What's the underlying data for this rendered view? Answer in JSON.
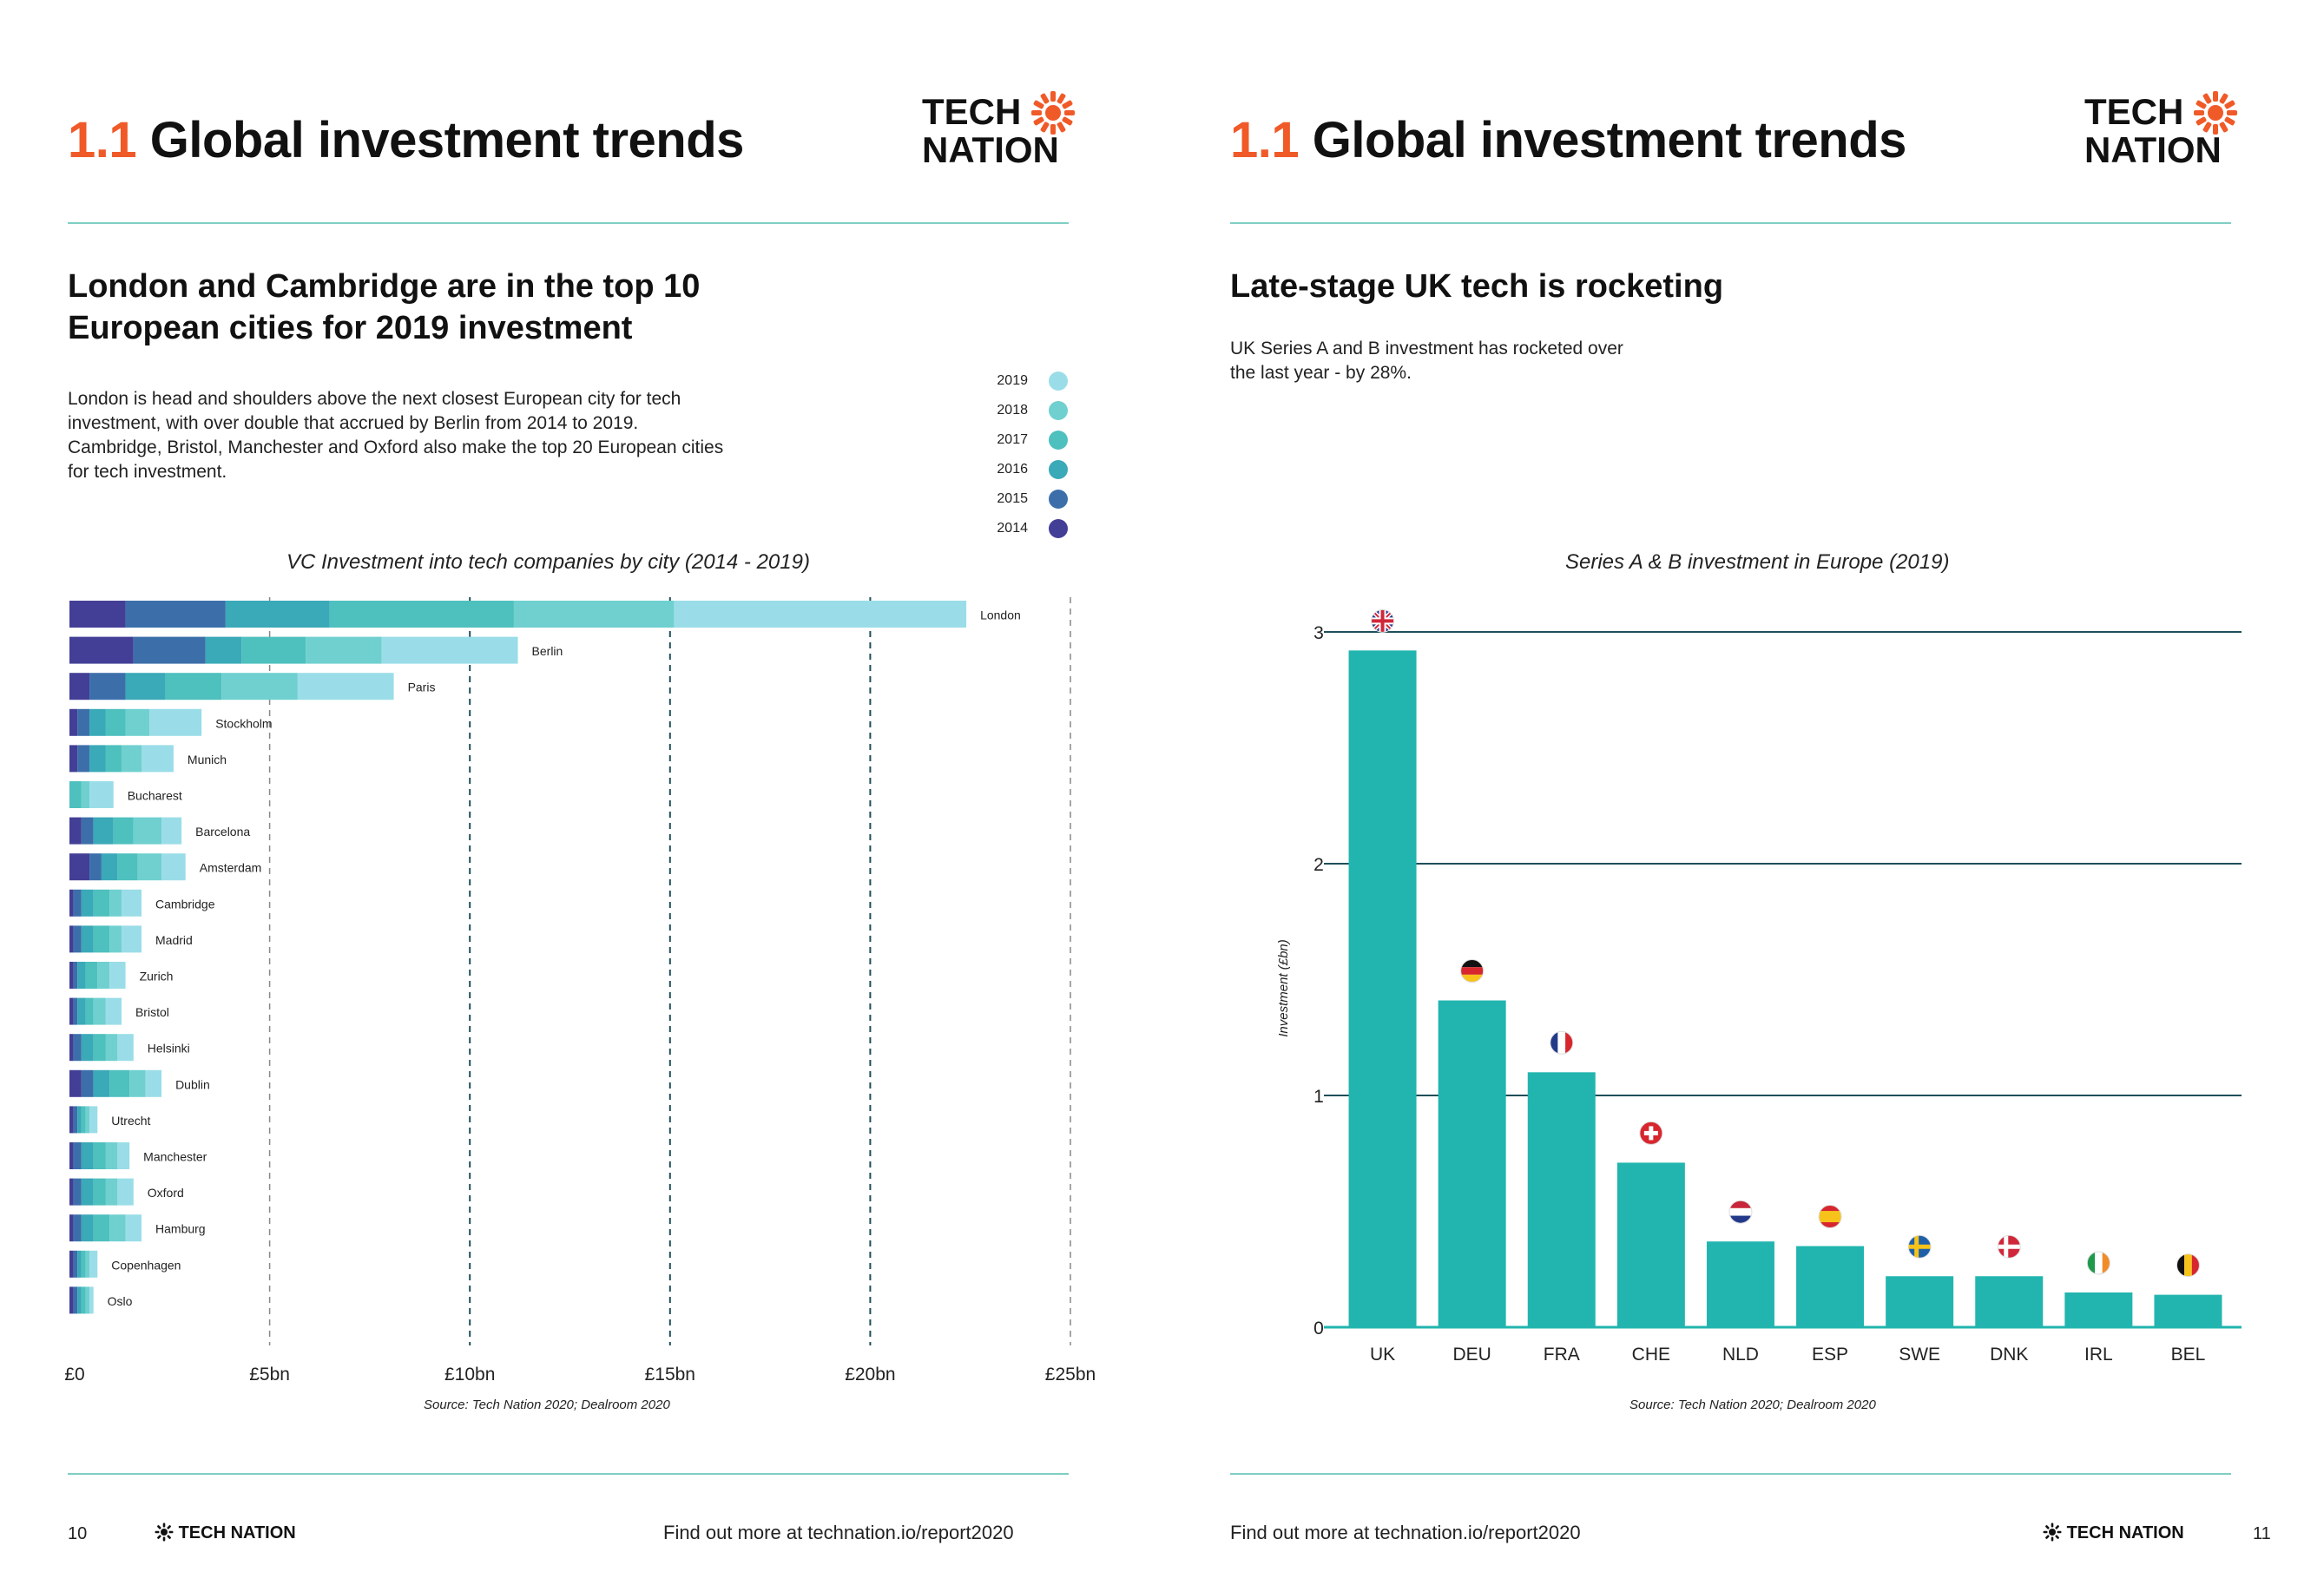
{
  "left_page": {
    "title_number": "1.1",
    "title_text": "Global investment trends",
    "logo_line1": "TECH",
    "logo_line2": "NATION",
    "heading": "London and Cambridge are in the top 10 European cities for 2019 investment",
    "body": "London is head and shoulders above the next closest European city for tech investment, with over double that accrued by Berlin from 2014 to 2019. Cambridge, Bristol, Manchester and Oxford also make the top 20 European cities for tech investment.",
    "chart_title": "VC Investment into tech companies by city (2014 - 2019)",
    "source": "Source: Tech Nation 2020; Dealroom 2020",
    "page_number": "10",
    "footer_brand": "TECH NATION",
    "footer_link": "Find out more at technation.io/report2020"
  },
  "right_page": {
    "title_number": "1.1",
    "title_text": "Global investment trends",
    "logo_line1": "TECH",
    "logo_line2": "NATION",
    "heading": "Late-stage UK tech is rocketing",
    "body": "UK Series A and B investment has rocketed over the last year - by 28%.",
    "chart_title": "Series A & B investment in Europe (2019)",
    "source": "Source: Tech Nation 2020; Dealroom 2020",
    "page_number": "11",
    "footer_brand": "TECH NATION",
    "footer_link": "Find out more at technation.io/report2020"
  },
  "colors": {
    "accent_orange": "#F05A28",
    "teal_bar": "#22B5AF",
    "y2019": "#9ADDE8",
    "y2018": "#6FD0CF",
    "y2017": "#4EC0BE",
    "y2016": "#3AA9B8",
    "y2015": "#3C6FAA",
    "y2014": "#433F96"
  },
  "chart_data": [
    {
      "type": "bar",
      "orientation": "horizontal",
      "stacked": true,
      "title": "VC Investment into tech companies by city (2014 - 2019)",
      "xlabel": "",
      "ylabel": "",
      "xlim": [
        0,
        25
      ],
      "x_ticks": [
        0,
        5,
        10,
        15,
        20,
        25
      ],
      "x_tick_labels": [
        "£0",
        "£5bn",
        "£10bn",
        "£15bn",
        "£20bn",
        "£25bn"
      ],
      "legend": [
        "2019",
        "2018",
        "2017",
        "2016",
        "2015",
        "2014"
      ],
      "legend_position": "top-right",
      "categories": [
        "London",
        "Berlin",
        "Paris",
        "Stockholm",
        "Munich",
        "Bucharest",
        "Barcelona",
        "Amsterdam",
        "Cambridge",
        "Madrid",
        "Zurich",
        "Bristol",
        "Helsinki",
        "Dublin",
        "Utrecht",
        "Manchester",
        "Oxford",
        "Hamburg",
        "Copenhagen",
        "Oslo"
      ],
      "series": [
        {
          "name": "2014",
          "values": [
            1.4,
            1.6,
            0.5,
            0.2,
            0.2,
            0.0,
            0.3,
            0.5,
            0.1,
            0.1,
            0.1,
            0.1,
            0.1,
            0.3,
            0.1,
            0.1,
            0.1,
            0.1,
            0.1,
            0.1
          ]
        },
        {
          "name": "2015",
          "values": [
            2.5,
            1.8,
            0.9,
            0.3,
            0.3,
            0.0,
            0.3,
            0.3,
            0.2,
            0.2,
            0.1,
            0.1,
            0.2,
            0.3,
            0.1,
            0.2,
            0.2,
            0.2,
            0.1,
            0.1
          ]
        },
        {
          "name": "2016",
          "values": [
            2.6,
            0.9,
            1.0,
            0.4,
            0.4,
            0.0,
            0.5,
            0.4,
            0.3,
            0.3,
            0.2,
            0.2,
            0.3,
            0.4,
            0.1,
            0.3,
            0.3,
            0.3,
            0.1,
            0.1
          ]
        },
        {
          "name": "2017",
          "values": [
            4.6,
            1.6,
            1.4,
            0.5,
            0.4,
            0.3,
            0.5,
            0.5,
            0.4,
            0.4,
            0.3,
            0.2,
            0.3,
            0.5,
            0.1,
            0.3,
            0.3,
            0.4,
            0.1,
            0.1
          ]
        },
        {
          "name": "2018",
          "values": [
            4.0,
            1.9,
            1.9,
            0.6,
            0.5,
            0.2,
            0.7,
            0.6,
            0.3,
            0.3,
            0.3,
            0.3,
            0.3,
            0.4,
            0.1,
            0.3,
            0.3,
            0.4,
            0.1,
            0.1
          ]
        },
        {
          "name": "2019",
          "values": [
            7.3,
            3.4,
            2.4,
            1.3,
            0.8,
            0.6,
            0.5,
            0.6,
            0.5,
            0.5,
            0.4,
            0.4,
            0.4,
            0.4,
            0.2,
            0.3,
            0.4,
            0.4,
            0.2,
            0.1
          ]
        }
      ]
    },
    {
      "type": "bar",
      "title": "Series A & B investment in Europe (2019)",
      "xlabel": "",
      "ylabel": "Investment (£bn)",
      "ylim": [
        0,
        3
      ],
      "y_ticks": [
        0,
        1,
        2,
        3
      ],
      "categories": [
        "UK",
        "DEU",
        "FRA",
        "CHE",
        "NLD",
        "ESP",
        "SWE",
        "DNK",
        "IRL",
        "BEL"
      ],
      "values": [
        2.92,
        1.41,
        1.1,
        0.71,
        0.37,
        0.35,
        0.22,
        0.22,
        0.15,
        0.14
      ]
    }
  ]
}
